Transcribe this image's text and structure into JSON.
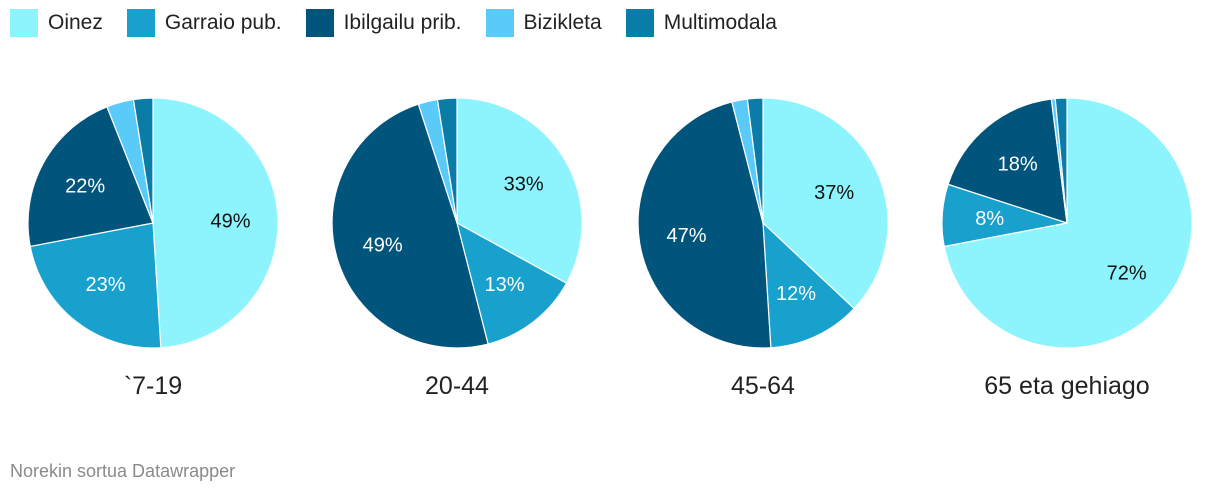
{
  "chart_data": {
    "type": "pie",
    "legend": {
      "placement": "top-left",
      "entries": [
        {
          "name": "Oinez",
          "color": "#8df4fd"
        },
        {
          "name": "Garraio pub.",
          "color": "#18a1cd"
        },
        {
          "name": "Ibilgailu prib.",
          "color": "#01557c"
        },
        {
          "name": "Bizikleta",
          "color": "#5acbf8"
        },
        {
          "name": "Multimodala",
          "color": "#0a7ca8"
        }
      ]
    },
    "charts": [
      {
        "title": "`7-19",
        "slices": [
          {
            "name": "Oinez",
            "value": 49,
            "label": "49%"
          },
          {
            "name": "Garraio pub.",
            "value": 23,
            "label": "23%"
          },
          {
            "name": "Ibilgailu prib.",
            "value": 22,
            "label": "22%"
          },
          {
            "name": "Bizikleta",
            "value": 3.5,
            "label": ""
          },
          {
            "name": "Multimodala",
            "value": 2.5,
            "label": ""
          }
        ]
      },
      {
        "title": "20-44",
        "slices": [
          {
            "name": "Oinez",
            "value": 33,
            "label": "33%"
          },
          {
            "name": "Garraio pub.",
            "value": 13,
            "label": "13%"
          },
          {
            "name": "Ibilgailu prib.",
            "value": 49,
            "label": "49%"
          },
          {
            "name": "Bizikleta",
            "value": 2.5,
            "label": ""
          },
          {
            "name": "Multimodala",
            "value": 2.5,
            "label": ""
          }
        ]
      },
      {
        "title": "45-64",
        "slices": [
          {
            "name": "Oinez",
            "value": 37,
            "label": "37%"
          },
          {
            "name": "Garraio pub.",
            "value": 12,
            "label": "12%"
          },
          {
            "name": "Ibilgailu prib.",
            "value": 47,
            "label": "47%"
          },
          {
            "name": "Bizikleta",
            "value": 2,
            "label": ""
          },
          {
            "name": "Multimodala",
            "value": 2,
            "label": ""
          }
        ]
      },
      {
        "title": "65 eta gehiago",
        "slices": [
          {
            "name": "Oinez",
            "value": 72,
            "label": "72%"
          },
          {
            "name": "Garraio pub.",
            "value": 8,
            "label": "8%"
          },
          {
            "name": "Ibilgailu prib.",
            "value": 18,
            "label": "18%"
          },
          {
            "name": "Bizikleta",
            "value": 0.5,
            "label": ""
          },
          {
            "name": "Multimodala",
            "value": 1.5,
            "label": ""
          }
        ]
      }
    ],
    "label_colors": {
      "light": "#ffffff",
      "dark": "#111111"
    }
  },
  "footer": {
    "text": "Norekin sortua Datawrapper"
  }
}
